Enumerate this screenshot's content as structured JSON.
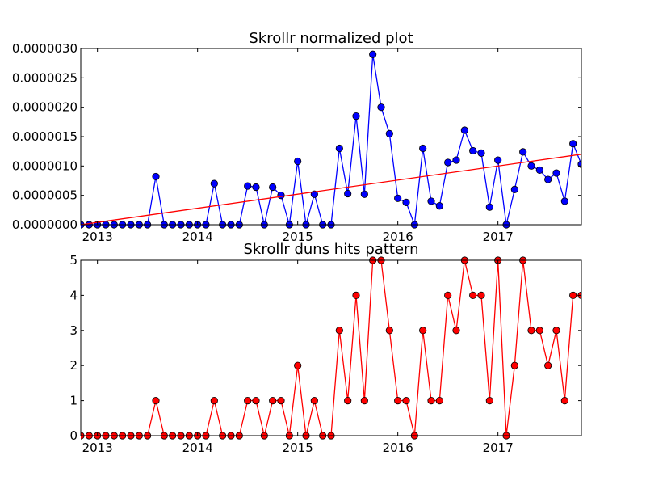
{
  "chart_data": [
    {
      "type": "line",
      "title": "Skrollr normalized plot",
      "xlabel": "",
      "ylabel": "",
      "xlim": [
        "2012-11",
        "2017-11"
      ],
      "ylim": [
        0,
        3e-06
      ],
      "grid": false,
      "x_ticks": [
        "2013",
        "2014",
        "2015",
        "2016",
        "2017"
      ],
      "y_ticks": [
        "0.0000000",
        "0.0000005",
        "0.0000010",
        "0.0000015",
        "0.0000020",
        "0.0000025",
        "0.0000030"
      ],
      "x": [
        "2012-11",
        "2012-12",
        "2013-01",
        "2013-02",
        "2013-03",
        "2013-04",
        "2013-05",
        "2013-06",
        "2013-07",
        "2013-08",
        "2013-09",
        "2013-10",
        "2013-11",
        "2013-12",
        "2014-01",
        "2014-02",
        "2014-03",
        "2014-04",
        "2014-05",
        "2014-06",
        "2014-07",
        "2014-08",
        "2014-09",
        "2014-10",
        "2014-11",
        "2014-12",
        "2015-01",
        "2015-02",
        "2015-03",
        "2015-04",
        "2015-05",
        "2015-06",
        "2015-07",
        "2015-08",
        "2015-09",
        "2015-10",
        "2015-11",
        "2015-12",
        "2016-01",
        "2016-02",
        "2016-03",
        "2016-04",
        "2016-05",
        "2016-06",
        "2016-07",
        "2016-08",
        "2016-09",
        "2016-10",
        "2016-11",
        "2016-12",
        "2017-01",
        "2017-02",
        "2017-03",
        "2017-04",
        "2017-05",
        "2017-06",
        "2017-07",
        "2017-08",
        "2017-09",
        "2017-10",
        "2017-11"
      ],
      "series": [
        {
          "color": "#0000ff",
          "marker": "circle",
          "values": [
            0,
            0,
            0,
            0,
            0,
            0,
            0,
            0,
            0,
            8.2e-07,
            0,
            0,
            0,
            0,
            0,
            0,
            7e-07,
            0,
            0,
            0,
            6.6e-07,
            6.4e-07,
            0,
            6.4e-07,
            5e-07,
            0,
            1.08e-06,
            0,
            5.2e-07,
            0,
            0,
            1.3e-06,
            5.3e-07,
            1.85e-06,
            5.2e-07,
            2.9e-06,
            2e-06,
            1.55e-06,
            4.5e-07,
            3.8e-07,
            0,
            1.3e-06,
            4e-07,
            3.2e-07,
            1.06e-06,
            1.1e-06,
            1.61e-06,
            1.26e-06,
            1.22e-06,
            3e-07,
            1.1e-06,
            0,
            6e-07,
            1.24e-06,
            1e-06,
            9.3e-07,
            7.7e-07,
            8.8e-07,
            4e-07,
            1.38e-06,
            1.03e-06
          ]
        },
        {
          "color": "#ff0000",
          "marker": "none",
          "trend": true,
          "values_at_ends": [
            0,
            1.2e-06
          ]
        }
      ]
    },
    {
      "type": "line",
      "title": "Skrollr duns hits pattern",
      "xlabel": "",
      "ylabel": "",
      "xlim": [
        "2012-11",
        "2017-11"
      ],
      "ylim": [
        0,
        5
      ],
      "grid": false,
      "x_ticks": [
        "2013",
        "2014",
        "2015",
        "2016",
        "2017"
      ],
      "y_ticks": [
        "0",
        "1",
        "2",
        "3",
        "4",
        "5"
      ],
      "x": [
        "2012-11",
        "2012-12",
        "2013-01",
        "2013-02",
        "2013-03",
        "2013-04",
        "2013-05",
        "2013-06",
        "2013-07",
        "2013-08",
        "2013-09",
        "2013-10",
        "2013-11",
        "2013-12",
        "2014-01",
        "2014-02",
        "2014-03",
        "2014-04",
        "2014-05",
        "2014-06",
        "2014-07",
        "2014-08",
        "2014-09",
        "2014-10",
        "2014-11",
        "2014-12",
        "2015-01",
        "2015-02",
        "2015-03",
        "2015-04",
        "2015-05",
        "2015-06",
        "2015-07",
        "2015-08",
        "2015-09",
        "2015-10",
        "2015-11",
        "2015-12",
        "2016-01",
        "2016-02",
        "2016-03",
        "2016-04",
        "2016-05",
        "2016-06",
        "2016-07",
        "2016-08",
        "2016-09",
        "2016-10",
        "2016-11",
        "2016-12",
        "2017-01",
        "2017-02",
        "2017-03",
        "2017-04",
        "2017-05",
        "2017-06",
        "2017-07",
        "2017-08",
        "2017-09",
        "2017-10",
        "2017-11"
      ],
      "series": [
        {
          "color": "#ff0000",
          "marker": "circle",
          "values": [
            0,
            0,
            0,
            0,
            0,
            0,
            0,
            0,
            0,
            1,
            0,
            0,
            0,
            0,
            0,
            0,
            1,
            0,
            0,
            0,
            1,
            1,
            0,
            1,
            1,
            0,
            2,
            0,
            1,
            0,
            0,
            3,
            1,
            4,
            1,
            5,
            5,
            3,
            1,
            1,
            0,
            3,
            1,
            1,
            4,
            3,
            5,
            4,
            4,
            1,
            5,
            0,
            2,
            5,
            3,
            3,
            2,
            3,
            1,
            4,
            4
          ]
        }
      ]
    }
  ]
}
